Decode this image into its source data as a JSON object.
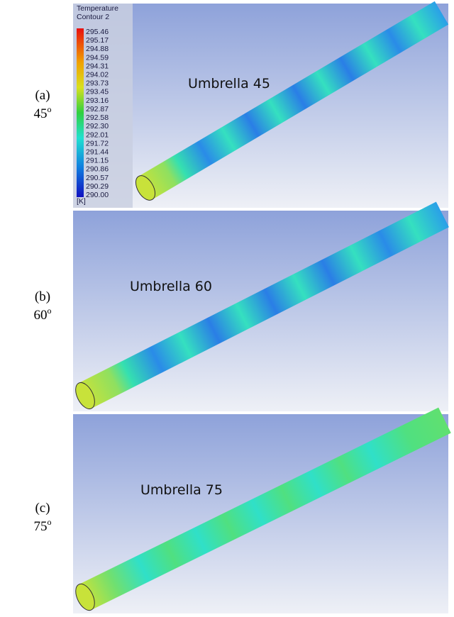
{
  "panels": [
    {
      "label": "(a)",
      "angle": "45",
      "angle_mark": "o",
      "title": "Umbrella 45"
    },
    {
      "label": "(b)",
      "angle": "60",
      "angle_mark": "o",
      "title": "Umbrella 60"
    },
    {
      "label": "(c)",
      "angle": "75",
      "angle_mark": "o",
      "title": "Umbrella 75"
    }
  ],
  "legend": {
    "title": "Temperature",
    "subtitle": "Contour 2",
    "levels": [
      "295.46",
      "295.17",
      "294.88",
      "294.59",
      "294.31",
      "294.02",
      "293.73",
      "293.45",
      "293.16",
      "292.87",
      "292.58",
      "292.30",
      "292.01",
      "291.72",
      "291.44",
      "291.15",
      "290.86",
      "290.57",
      "290.29",
      "290.00"
    ],
    "unit": "[K]"
  }
}
